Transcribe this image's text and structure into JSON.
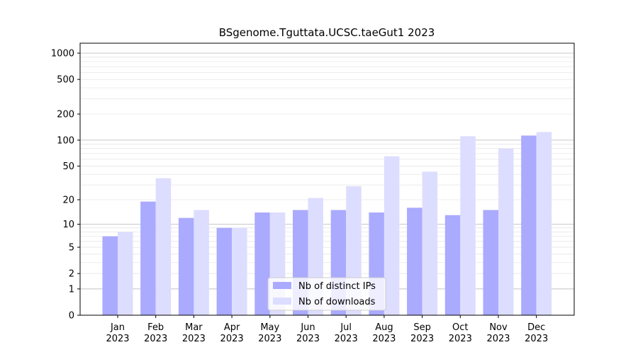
{
  "chart_data": {
    "type": "bar",
    "title": "BSgenome.Tguttata.UCSC.taeGut1 2023",
    "xlabel": "",
    "ylabel": "",
    "yscale": "log1p",
    "ylim": [
      0,
      1300
    ],
    "grid": "y-major-and-minor",
    "legend_position": "lower-center",
    "categories": [
      [
        "Jan",
        "2023"
      ],
      [
        "Feb",
        "2023"
      ],
      [
        "Mar",
        "2023"
      ],
      [
        "Apr",
        "2023"
      ],
      [
        "May",
        "2023"
      ],
      [
        "Jun",
        "2023"
      ],
      [
        "Jul",
        "2023"
      ],
      [
        "Aug",
        "2023"
      ],
      [
        "Sep",
        "2023"
      ],
      [
        "Oct",
        "2023"
      ],
      [
        "Nov",
        "2023"
      ],
      [
        "Dec",
        "2023"
      ]
    ],
    "y_ticks": [
      0,
      1,
      2,
      5,
      10,
      20,
      50,
      100,
      200,
      500,
      1000
    ],
    "series": [
      {
        "name": "Nb of distinct IPs",
        "color": "#aaaaff",
        "values": [
          7,
          19,
          12,
          9,
          14,
          15,
          15,
          14,
          16,
          13,
          15,
          113
        ]
      },
      {
        "name": "Nb of downloads",
        "color": "#ddddff",
        "values": [
          8,
          36,
          15,
          9,
          14,
          21,
          29,
          65,
          43,
          111,
          80,
          124
        ]
      }
    ]
  }
}
